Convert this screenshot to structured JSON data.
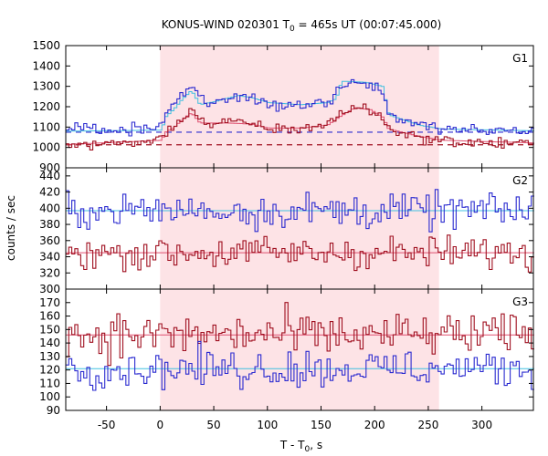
{
  "chart_data": {
    "type": "line",
    "title": "KONUS-WIND 020301 T",
    "title_sub": "0",
    "title_rest": " = 465s UT (00:07:45.000)",
    "xlabel": "T - T",
    "xlabel_sub": "0",
    "xlabel_rest": ", s",
    "ylabel": "counts / sec",
    "xlim": [
      -88,
      348
    ],
    "xticks": [
      -50,
      0,
      50,
      100,
      150,
      200,
      250,
      300
    ],
    "highlight_interval": [
      0,
      260
    ],
    "colors": {
      "blue": "#2b2bd0",
      "red": "#a01020",
      "fit_blue": "#40c0e0",
      "fit_red": "#e05070",
      "highlight": "#fde3e6"
    },
    "panels": [
      {
        "name": "G1",
        "ylim": [
          900,
          1500
        ],
        "yticks": [
          900,
          1000,
          1100,
          1200,
          1300,
          1400,
          1500
        ],
        "blue_background": 1075,
        "red_background": 1013,
        "blue_envelope": [
          [
            -88,
            1083
          ],
          [
            -40,
            1087
          ],
          [
            -10,
            1095
          ],
          [
            0,
            1100
          ],
          [
            4,
            1180
          ],
          [
            10,
            1210
          ],
          [
            18,
            1240
          ],
          [
            26,
            1300
          ],
          [
            34,
            1270
          ],
          [
            42,
            1215
          ],
          [
            50,
            1225
          ],
          [
            60,
            1240
          ],
          [
            72,
            1255
          ],
          [
            84,
            1240
          ],
          [
            92,
            1225
          ],
          [
            100,
            1215
          ],
          [
            110,
            1205
          ],
          [
            120,
            1205
          ],
          [
            130,
            1210
          ],
          [
            140,
            1215
          ],
          [
            150,
            1220
          ],
          [
            160,
            1230
          ],
          [
            166,
            1300
          ],
          [
            175,
            1320
          ],
          [
            185,
            1310
          ],
          [
            195,
            1300
          ],
          [
            205,
            1290
          ],
          [
            212,
            1170
          ],
          [
            220,
            1140
          ],
          [
            230,
            1130
          ],
          [
            240,
            1110
          ],
          [
            250,
            1100
          ],
          [
            262,
            1090
          ],
          [
            280,
            1085
          ],
          [
            300,
            1082
          ],
          [
            348,
            1082
          ]
        ],
        "red_envelope": [
          [
            -88,
            1012
          ],
          [
            -40,
            1020
          ],
          [
            -10,
            1030
          ],
          [
            0,
            1038
          ],
          [
            4,
            1080
          ],
          [
            10,
            1100
          ],
          [
            18,
            1130
          ],
          [
            26,
            1190
          ],
          [
            34,
            1160
          ],
          [
            42,
            1110
          ],
          [
            50,
            1110
          ],
          [
            60,
            1120
          ],
          [
            72,
            1125
          ],
          [
            84,
            1115
          ],
          [
            92,
            1100
          ],
          [
            100,
            1095
          ],
          [
            110,
            1090
          ],
          [
            120,
            1090
          ],
          [
            130,
            1095
          ],
          [
            140,
            1100
          ],
          [
            150,
            1110
          ],
          [
            160,
            1130
          ],
          [
            166,
            1160
          ],
          [
            175,
            1190
          ],
          [
            185,
            1200
          ],
          [
            195,
            1180
          ],
          [
            205,
            1150
          ],
          [
            212,
            1090
          ],
          [
            220,
            1080
          ],
          [
            230,
            1065
          ],
          [
            240,
            1050
          ],
          [
            250,
            1040
          ],
          [
            262,
            1035
          ],
          [
            280,
            1025
          ],
          [
            300,
            1022
          ],
          [
            348,
            1020
          ]
        ],
        "blue_fit": [
          [
            -88,
            1080
          ],
          [
            0,
            1085
          ],
          [
            4,
            1150
          ],
          [
            12,
            1190
          ],
          [
            20,
            1240
          ],
          [
            28,
            1280
          ],
          [
            36,
            1210
          ],
          [
            50,
            1225
          ],
          [
            60,
            1240
          ],
          [
            72,
            1255
          ],
          [
            84,
            1245
          ],
          [
            100,
            1220
          ],
          [
            130,
            1210
          ],
          [
            155,
            1220
          ],
          [
            163,
            1240
          ],
          [
            168,
            1325
          ],
          [
            190,
            1320
          ],
          [
            206,
            1300
          ],
          [
            212,
            1160
          ],
          [
            240,
            1110
          ],
          [
            262,
            1090
          ],
          [
            348,
            1082
          ]
        ],
        "red_fit": [
          [
            -88,
            1015
          ],
          [
            0,
            1035
          ],
          [
            4,
            1075
          ],
          [
            12,
            1100
          ],
          [
            20,
            1140
          ],
          [
            28,
            1170
          ],
          [
            36,
            1120
          ],
          [
            60,
            1120
          ],
          [
            84,
            1115
          ],
          [
            100,
            1095
          ],
          [
            130,
            1095
          ],
          [
            155,
            1110
          ],
          [
            166,
            1150
          ],
          [
            180,
            1195
          ],
          [
            195,
            1185
          ],
          [
            206,
            1150
          ],
          [
            212,
            1090
          ],
          [
            240,
            1055
          ],
          [
            262,
            1035
          ],
          [
            348,
            1022
          ]
        ],
        "blue_noise": 14,
        "red_noise": 13
      },
      {
        "name": "G2",
        "ylim": [
          300,
          450
        ],
        "yticks": [
          300,
          320,
          340,
          360,
          380,
          400,
          420,
          440
        ],
        "blue_level": 397,
        "red_level": 345,
        "blue_noise": 11,
        "red_noise": 10
      },
      {
        "name": "G3",
        "ylim": [
          90,
          180
        ],
        "yticks": [
          90,
          100,
          110,
          120,
          130,
          140,
          150,
          160,
          170
        ],
        "blue_level": 121,
        "red_level": 146,
        "blue_noise": 7,
        "red_noise": 8
      }
    ]
  }
}
